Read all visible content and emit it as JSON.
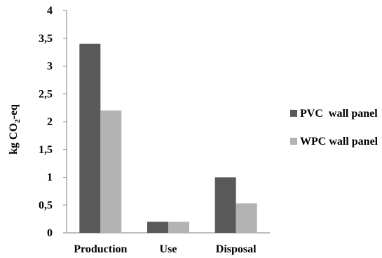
{
  "chart_data": {
    "type": "bar",
    "categories": [
      "Production",
      "Use",
      "Disposal"
    ],
    "series": [
      {
        "name": "PVC  wall panel",
        "values": [
          3.4,
          0.2,
          1.0
        ],
        "color": "#595959"
      },
      {
        "name": "WPC wall panel",
        "values": [
          2.2,
          0.2,
          0.53
        ],
        "color": "#b3b3b3"
      }
    ],
    "ylabel_main": "kg CO",
    "ylabel_sub": "2",
    "ylabel_tail": "-eq",
    "ylim": [
      0,
      4
    ],
    "yticks": [
      "0",
      "0,5",
      "1",
      "1,5",
      "2",
      "2,5",
      "3",
      "3,5",
      "4"
    ],
    "grid": false,
    "legend_position": "right"
  }
}
